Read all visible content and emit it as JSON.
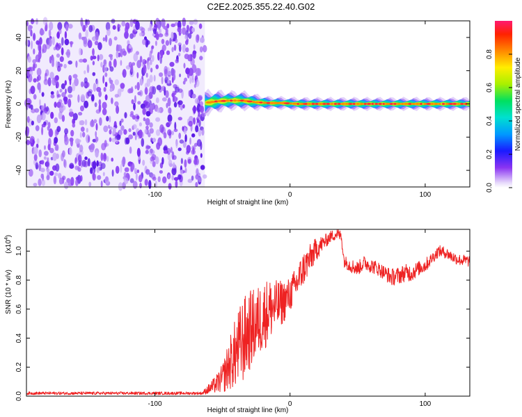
{
  "title": "C2E2.2025.355.22.40.G02",
  "colors": {
    "snr_line": "#ee2222",
    "noise": "#7a2cf0",
    "background": "#ffffff"
  },
  "chart_data": [
    {
      "type": "heatmap",
      "name": "spectrogram",
      "xlabel": "Height of straight line (km)",
      "ylabel": "Frequency (Hz)",
      "xlim": [
        -195,
        133
      ],
      "ylim": [
        -50,
        50
      ],
      "xticks": [
        -100,
        0,
        100
      ],
      "yticks": [
        -40,
        -20,
        0,
        20,
        40
      ],
      "noise_region_x": [
        -195,
        -63
      ],
      "signal_start_x": -63,
      "signal_track": {
        "x": [
          -63,
          -55,
          -45,
          -35,
          -25,
          -15,
          -5,
          5,
          15,
          30,
          50,
          70,
          90,
          110,
          133
        ],
        "center_hz": [
          0.5,
          1.5,
          2,
          2,
          1,
          0.5,
          0.5,
          0,
          0,
          0,
          0,
          0,
          0,
          0,
          0
        ],
        "halfwidth_hz": [
          4,
          3.5,
          3,
          3,
          2.5,
          2,
          2,
          2,
          2,
          2,
          2,
          2,
          2,
          2,
          2
        ]
      },
      "colorbar": {
        "label": "Normalized spectral amplitude",
        "ticks": [
          0.0,
          0.2,
          0.4,
          0.6,
          0.8
        ],
        "range": [
          0,
          1
        ]
      }
    },
    {
      "type": "line",
      "name": "snr",
      "xlabel": "Height of straight line (km)",
      "ylabel": "SNR (10 * v/v)",
      "yscale_label": "(x10",
      "yscale_exp": "4",
      "yscale_suffix": ")",
      "xlim": [
        -195,
        133
      ],
      "ylim": [
        0,
        1.15
      ],
      "xticks": [
        -100,
        0,
        100
      ],
      "yticks": [
        0.0,
        0.2,
        0.4,
        0.6,
        0.8,
        1.0
      ],
      "series": [
        {
          "name": "SNR",
          "x": [
            -195,
            -150,
            -100,
            -65,
            -55,
            -50,
            -45,
            -40,
            -35,
            -30,
            -25,
            -20,
            -15,
            -10,
            -5,
            0,
            5,
            10,
            15,
            20,
            25,
            30,
            35,
            38,
            40,
            45,
            50,
            55,
            60,
            65,
            70,
            75,
            80,
            85,
            90,
            95,
            100,
            105,
            110,
            115,
            120,
            125,
            133
          ],
          "mean": [
            0.02,
            0.02,
            0.02,
            0.02,
            0.08,
            0.12,
            0.22,
            0.3,
            0.38,
            0.45,
            0.5,
            0.55,
            0.6,
            0.62,
            0.65,
            0.7,
            0.78,
            0.88,
            0.95,
            1.02,
            1.06,
            1.1,
            1.12,
            1.1,
            0.93,
            0.9,
            0.88,
            0.92,
            0.9,
            0.88,
            0.85,
            0.82,
            0.83,
            0.85,
            0.85,
            0.88,
            0.9,
            0.95,
            1.0,
            0.99,
            0.96,
            0.94,
            0.93
          ],
          "spread": [
            0.01,
            0.01,
            0.01,
            0.01,
            0.06,
            0.1,
            0.18,
            0.25,
            0.3,
            0.28,
            0.25,
            0.25,
            0.22,
            0.18,
            0.15,
            0.12,
            0.12,
            0.12,
            0.1,
            0.08,
            0.05,
            0.04,
            0.04,
            0.04,
            0.04,
            0.05,
            0.05,
            0.05,
            0.05,
            0.05,
            0.05,
            0.06,
            0.06,
            0.06,
            0.06,
            0.05,
            0.05,
            0.04,
            0.04,
            0.04,
            0.04,
            0.04,
            0.04
          ]
        }
      ]
    }
  ]
}
